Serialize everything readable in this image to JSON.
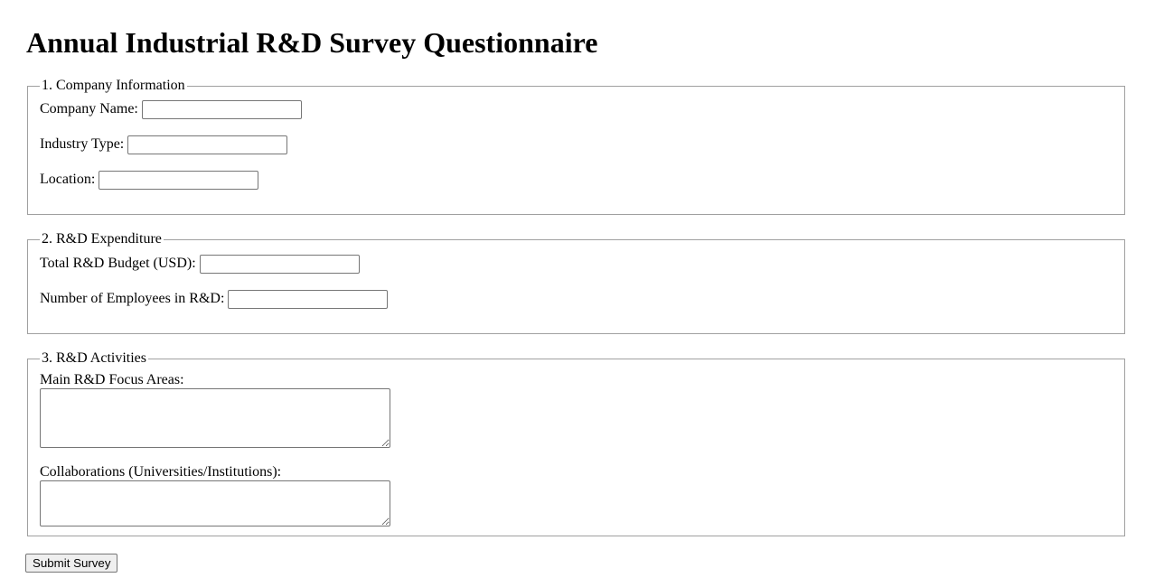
{
  "title": "Annual Industrial R&D Survey Questionnaire",
  "sections": [
    {
      "legend": "1. Company Information",
      "fields": [
        {
          "label": "Company Name:",
          "value": ""
        },
        {
          "label": "Industry Type:",
          "value": ""
        },
        {
          "label": "Location:",
          "value": ""
        }
      ]
    },
    {
      "legend": "2. R&D Expenditure",
      "fields": [
        {
          "label": "Total R&D Budget (USD):",
          "value": ""
        },
        {
          "label": "Number of Employees in R&D:",
          "value": ""
        }
      ]
    },
    {
      "legend": "3. R&D Activities",
      "fields": [
        {
          "label": "Main R&D Focus Areas:",
          "value": ""
        },
        {
          "label": "Collaborations (Universities/Institutions):",
          "value": ""
        }
      ]
    }
  ],
  "submit_label": "Submit Survey"
}
